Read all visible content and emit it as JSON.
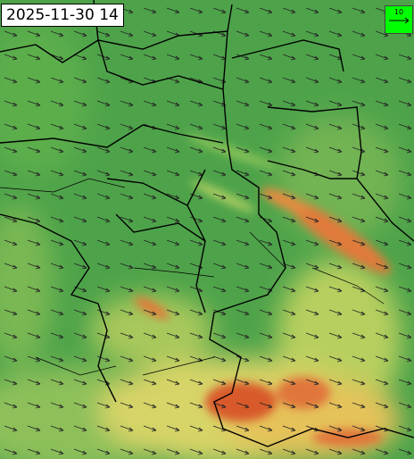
{
  "timestamp": "2025-11-30 14",
  "legend": {
    "label": "10"
  }
}
